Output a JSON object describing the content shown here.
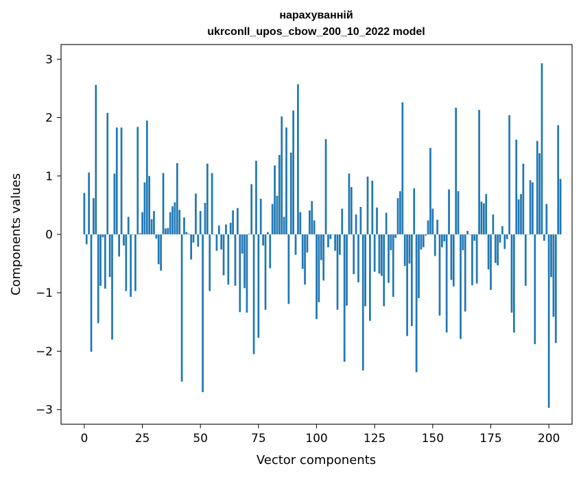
{
  "chart_data": {
    "type": "bar",
    "title_line1": "нарахуванній",
    "title_line2": "ukrconll_upos_cbow_200_10_2022 model",
    "xlabel": "Vector components",
    "ylabel": "Components values",
    "xlim": [
      -10,
      210
    ],
    "ylim": [
      -3.25,
      3.25
    ],
    "xticks": [
      0,
      25,
      50,
      75,
      100,
      125,
      150,
      175,
      200
    ],
    "yticks": [
      -3,
      -2,
      -1,
      0,
      1,
      2,
      3
    ],
    "ytick_labels": [
      "−3",
      "−2",
      "−1",
      "0",
      "1",
      "2",
      "3"
    ],
    "xtick_labels": [
      "0",
      "25",
      "50",
      "75",
      "100",
      "125",
      "150",
      "175",
      "200"
    ],
    "bar_color": "#1f77b4",
    "grid": false,
    "values": [
      0.71,
      -0.17,
      1.06,
      -2.01,
      0.62,
      2.56,
      -1.52,
      -0.88,
      -0.05,
      -0.93,
      2.08,
      -0.73,
      -1.8,
      1.04,
      1.83,
      -0.38,
      1.83,
      -0.19,
      -0.97,
      0.3,
      -1.07,
      0.0,
      -0.97,
      1.84,
      0.02,
      0.38,
      0.89,
      1.95,
      1.0,
      0.26,
      0.4,
      -0.07,
      -0.51,
      -0.62,
      1.05,
      0.1,
      0.11,
      0.38,
      0.48,
      0.55,
      1.22,
      0.42,
      -2.52,
      0.29,
      0.04,
      0.01,
      -0.43,
      -0.14,
      0.7,
      -0.21,
      0.4,
      -2.7,
      0.54,
      1.21,
      -0.97,
      1.05,
      0.0,
      -0.28,
      0.15,
      -0.26,
      -0.7,
      0.17,
      -0.86,
      0.2,
      0.41,
      -0.88,
      0.45,
      -1.33,
      -0.33,
      -0.92,
      -1.34,
      0.01,
      0.86,
      -2.05,
      1.26,
      -1.77,
      0.61,
      -0.19,
      -1.29,
      0.04,
      -0.58,
      0.52,
      1.18,
      0.66,
      1.36,
      2.02,
      0.3,
      1.83,
      -1.19,
      1.4,
      2.12,
      -0.35,
      2.57,
      0.38,
      -0.59,
      -0.86,
      -0.31,
      0.41,
      0.57,
      0.24,
      -1.45,
      -1.16,
      -0.44,
      -0.79,
      1.63,
      -0.22,
      -0.08,
      0.0,
      -0.28,
      -1.29,
      -0.35,
      0.44,
      -2.18,
      -1.22,
      1.04,
      0.81,
      -0.68,
      0.34,
      -0.82,
      0.47,
      -2.33,
      -1.23,
      0.99,
      -1.48,
      0.92,
      -0.64,
      0.46,
      -0.67,
      -0.71,
      -1.23,
      0.37,
      -0.83,
      -0.27,
      -1.07,
      -0.06,
      0.62,
      0.74,
      2.26,
      -0.54,
      -1.74,
      -0.5,
      -1.57,
      0.79,
      -2.36,
      -1.09,
      -0.26,
      -0.22,
      -0.02,
      0.24,
      1.48,
      0.44,
      -0.37,
      0.25,
      -1.39,
      -0.22,
      -0.12,
      -1.68,
      0.77,
      -0.78,
      -0.89,
      2.17,
      0.74,
      -1.79,
      -0.27,
      -1.32,
      0.06,
      0.0,
      -0.87,
      -0.11,
      -0.84,
      2.13,
      0.56,
      0.53,
      0.69,
      -0.6,
      -0.95,
      0.34,
      -0.49,
      -0.53,
      -0.14,
      0.14,
      -0.25,
      -0.08,
      2.04,
      -1.34,
      -1.68,
      1.62,
      0.6,
      0.69,
      1.21,
      -0.88,
      0.0,
      0.93,
      0.89,
      -1.88,
      1.6,
      1.39,
      2.93,
      -0.11,
      0.52,
      -2.97,
      -0.73,
      -1.41,
      -1.86,
      1.87,
      0.95
    ]
  }
}
